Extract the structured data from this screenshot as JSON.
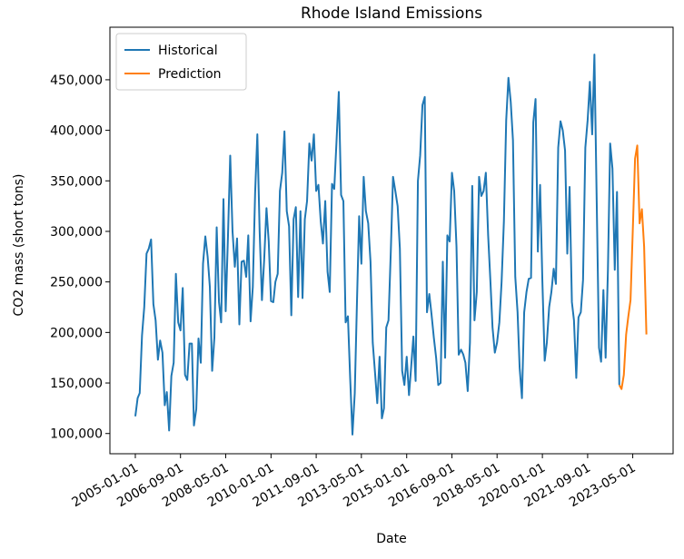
{
  "chart_data": {
    "type": "line",
    "title": "Rhode Island Emissions",
    "x_label": "Date",
    "y_label": "CO2 mass (short tons)",
    "legend": "upper left",
    "xlim": [
      "2004-01-25",
      "2024-10-25"
    ],
    "ylim": [
      80000,
      502000
    ],
    "xticks": [
      "2005-01-01",
      "2006-09-01",
      "2008-05-01",
      "2010-01-01",
      "2011-09-01",
      "2013-05-01",
      "2015-01-01",
      "2016-09-01",
      "2018-05-01",
      "2020-01-01",
      "2021-09-01",
      "2023-05-01"
    ],
    "yticks": [
      {
        "value": 100000,
        "label": "100,000"
      },
      {
        "value": 150000,
        "label": "150,000"
      },
      {
        "value": 200000,
        "label": "200,000"
      },
      {
        "value": 250000,
        "label": "250,000"
      },
      {
        "value": 300000,
        "label": "300,000"
      },
      {
        "value": 350000,
        "label": "350,000"
      },
      {
        "value": 400000,
        "label": "400,000"
      },
      {
        "value": 450000,
        "label": "450,000"
      }
    ],
    "series": [
      {
        "name": "Historical",
        "color": "#1f77b4",
        "x": [
          "2005-01-01",
          "2005-02-01",
          "2005-03-01",
          "2005-04-01",
          "2005-05-01",
          "2005-06-01",
          "2005-07-01",
          "2005-08-01",
          "2005-09-01",
          "2005-10-01",
          "2005-11-01",
          "2005-12-01",
          "2006-01-01",
          "2006-02-01",
          "2006-03-01",
          "2006-04-01",
          "2006-05-01",
          "2006-06-01",
          "2006-07-01",
          "2006-08-01",
          "2006-09-01",
          "2006-10-01",
          "2006-11-01",
          "2006-12-01",
          "2007-01-01",
          "2007-02-01",
          "2007-03-01",
          "2007-04-01",
          "2007-05-01",
          "2007-06-01",
          "2007-07-01",
          "2007-08-01",
          "2007-09-01",
          "2007-10-01",
          "2007-11-01",
          "2007-12-01",
          "2008-01-01",
          "2008-02-01",
          "2008-03-01",
          "2008-04-01",
          "2008-05-01",
          "2008-06-01",
          "2008-07-01",
          "2008-08-01",
          "2008-09-01",
          "2008-10-01",
          "2008-11-01",
          "2008-12-01",
          "2009-01-01",
          "2009-02-01",
          "2009-03-01",
          "2009-04-01",
          "2009-05-01",
          "2009-06-01",
          "2009-07-01",
          "2009-08-01",
          "2009-09-01",
          "2009-10-01",
          "2009-11-01",
          "2009-12-01",
          "2010-01-01",
          "2010-02-01",
          "2010-03-01",
          "2010-04-01",
          "2010-05-01",
          "2010-06-01",
          "2010-07-01",
          "2010-08-01",
          "2010-09-01",
          "2010-10-01",
          "2010-11-01",
          "2010-12-01",
          "2011-01-01",
          "2011-02-01",
          "2011-03-01",
          "2011-04-01",
          "2011-05-01",
          "2011-06-01",
          "2011-07-01",
          "2011-08-01",
          "2011-09-01",
          "2011-10-01",
          "2011-11-01",
          "2011-12-01",
          "2012-01-01",
          "2012-02-01",
          "2012-03-01",
          "2012-04-01",
          "2012-05-01",
          "2012-06-01",
          "2012-07-01",
          "2012-08-01",
          "2012-09-01",
          "2012-10-01",
          "2012-11-01",
          "2012-12-01",
          "2013-01-01",
          "2013-02-01",
          "2013-03-01",
          "2013-04-01",
          "2013-05-01",
          "2013-06-01",
          "2013-07-01",
          "2013-08-01",
          "2013-09-01",
          "2013-10-01",
          "2013-11-01",
          "2013-12-01",
          "2014-01-01",
          "2014-02-01",
          "2014-03-01",
          "2014-04-01",
          "2014-05-01",
          "2014-06-01",
          "2014-07-01",
          "2014-08-01",
          "2014-09-01",
          "2014-10-01",
          "2014-11-01",
          "2014-12-01",
          "2015-01-01",
          "2015-02-01",
          "2015-03-01",
          "2015-04-01",
          "2015-05-01",
          "2015-06-01",
          "2015-07-01",
          "2015-08-01",
          "2015-09-01",
          "2015-10-01",
          "2015-11-01",
          "2015-12-01",
          "2016-01-01",
          "2016-02-01",
          "2016-03-01",
          "2016-04-01",
          "2016-05-01",
          "2016-06-01",
          "2016-07-01",
          "2016-08-01",
          "2016-09-01",
          "2016-10-01",
          "2016-11-01",
          "2016-12-01",
          "2017-01-01",
          "2017-02-01",
          "2017-03-01",
          "2017-04-01",
          "2017-05-01",
          "2017-06-01",
          "2017-07-01",
          "2017-08-01",
          "2017-09-01",
          "2017-10-01",
          "2017-11-01",
          "2017-12-01",
          "2018-01-01",
          "2018-02-01",
          "2018-03-01",
          "2018-04-01",
          "2018-05-01",
          "2018-06-01",
          "2018-07-01",
          "2018-08-01",
          "2018-09-01",
          "2018-10-01",
          "2018-11-01",
          "2018-12-01",
          "2019-01-01",
          "2019-02-01",
          "2019-03-01",
          "2019-04-01",
          "2019-05-01",
          "2019-06-01",
          "2019-07-01",
          "2019-08-01",
          "2019-09-01",
          "2019-10-01",
          "2019-11-01",
          "2019-12-01",
          "2020-01-01",
          "2020-02-01",
          "2020-03-01",
          "2020-04-01",
          "2020-05-01",
          "2020-06-01",
          "2020-07-01",
          "2020-08-01",
          "2020-09-01",
          "2020-10-01",
          "2020-11-01",
          "2020-12-01",
          "2021-01-01",
          "2021-02-01",
          "2021-03-01",
          "2021-04-01",
          "2021-05-01",
          "2021-06-01",
          "2021-07-01",
          "2021-08-01",
          "2021-09-01",
          "2021-10-01",
          "2021-11-01",
          "2021-12-01",
          "2022-01-01",
          "2022-02-01",
          "2022-03-01",
          "2022-04-01",
          "2022-05-01",
          "2022-06-01",
          "2022-07-01",
          "2022-08-01",
          "2022-09-01",
          "2022-10-01",
          "2022-11-01"
        ],
        "values": [
          117000,
          135000,
          140000,
          197000,
          225000,
          278000,
          283000,
          292000,
          228000,
          212000,
          173000,
          192000,
          180000,
          128000,
          141000,
          103000,
          157000,
          170000,
          258000,
          210000,
          202000,
          244000,
          158000,
          153000,
          189000,
          189000,
          108000,
          124000,
          194000,
          170000,
          268000,
          295000,
          275000,
          245000,
          162000,
          195000,
          304000,
          230000,
          210000,
          332000,
          221000,
          296000,
          375000,
          300000,
          265000,
          293000,
          208000,
          270000,
          271000,
          255000,
          296000,
          211000,
          245000,
          338000,
          396000,
          300000,
          232000,
          272000,
          323000,
          290000,
          231000,
          230000,
          250000,
          258000,
          340000,
          358000,
          399000,
          320000,
          305000,
          217000,
          312000,
          324000,
          235000,
          320000,
          234000,
          312000,
          330000,
          387000,
          370000,
          396000,
          340000,
          346000,
          310000,
          288000,
          330000,
          260000,
          240000,
          347000,
          342000,
          390000,
          438000,
          336000,
          330000,
          210000,
          216000,
          155000,
          99000,
          140000,
          225000,
          315000,
          268000,
          354000,
          320000,
          308000,
          270000,
          190000,
          160000,
          130000,
          176000,
          115000,
          125000,
          205000,
          212000,
          280000,
          354000,
          340000,
          325000,
          283000,
          162000,
          148000,
          176000,
          138000,
          165000,
          196000,
          152000,
          350000,
          375000,
          425000,
          433000,
          220000,
          238000,
          218000,
          195000,
          175000,
          148000,
          150000,
          270000,
          175000,
          296000,
          290000,
          358000,
          340000,
          285000,
          178000,
          183000,
          178000,
          170000,
          142000,
          190000,
          345000,
          212000,
          240000,
          354000,
          335000,
          340000,
          358000,
          296000,
          250000,
          205000,
          180000,
          190000,
          210000,
          250000,
          310000,
          410000,
          452000,
          428000,
          390000,
          255000,
          220000,
          165000,
          135000,
          220000,
          240000,
          253000,
          254000,
          408000,
          431000,
          280000,
          346000,
          250000,
          172000,
          190000,
          225000,
          240000,
          263000,
          248000,
          383000,
          409000,
          400000,
          380000,
          278000,
          344000,
          230000,
          212000,
          155000,
          215000,
          220000,
          252000,
          383000,
          410000,
          448000,
          396000,
          475000,
          330000,
          185000,
          171000,
          242000,
          175000,
          262000,
          387000,
          362000,
          262000,
          339000,
          148000
        ]
      },
      {
        "name": "Prediction",
        "color": "#ff7f0e",
        "x": [
          "2022-11-01",
          "2022-12-01",
          "2023-01-01",
          "2023-02-01",
          "2023-03-01",
          "2023-04-01",
          "2023-05-01",
          "2023-06-01",
          "2023-07-01",
          "2023-08-01",
          "2023-09-01",
          "2023-10-01",
          "2023-11-01"
        ],
        "values": [
          148000,
          144000,
          158000,
          198000,
          215000,
          232000,
          300000,
          372000,
          385000,
          308000,
          322000,
          285000,
          198000
        ]
      }
    ]
  }
}
